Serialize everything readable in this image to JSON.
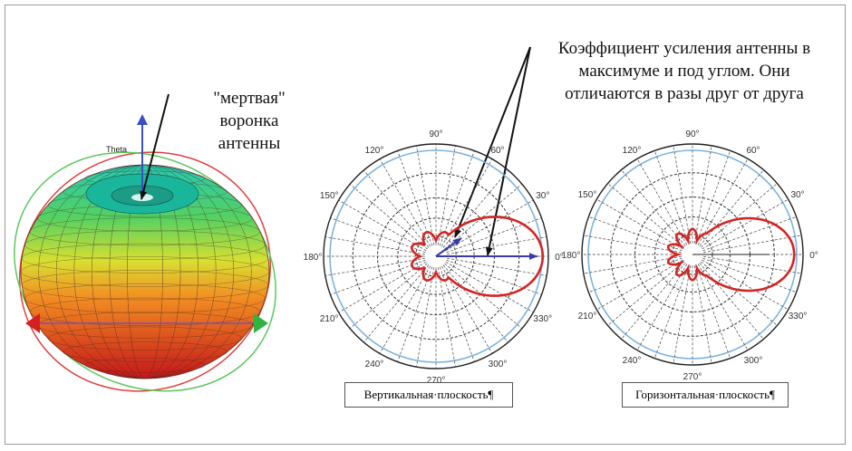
{
  "annotations": {
    "dead_funnel": "\"мертвая\" воронка антенны",
    "gain": "Коэффициент усиления антенны в максимуме и под углом. Они отличаются в разы друг от друга"
  },
  "pattern_3d": {
    "axis_label": "Theta"
  },
  "polar_ticks": [
    "0°",
    "30°",
    "60°",
    "90°",
    "120°",
    "150°",
    "180°",
    "210°",
    "240°",
    "270°",
    "300°",
    "330°"
  ],
  "captions": {
    "vertical": "Вертикальная·плоскость¶",
    "horizontal": "Горизонтальная·плоскость¶"
  },
  "colors": {
    "lobe": "#d42424",
    "outer_ring": "#7fb3de",
    "arrow": "#3a3aa8"
  }
}
